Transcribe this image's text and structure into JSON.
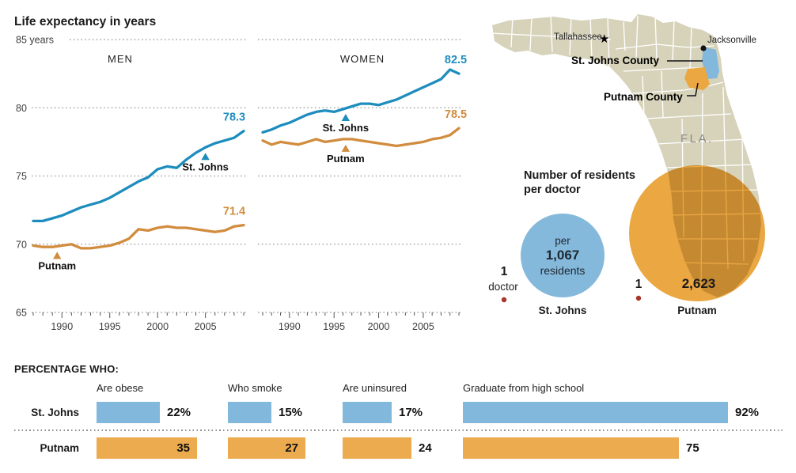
{
  "title": "Life expectancy in years",
  "colors": {
    "blue_line": "#1e8dbe",
    "orange_line": "#d18c3e",
    "blue_bar": "#82b8dc",
    "orange_bar": "#ecab4f",
    "blue_circle": "#85b9dc",
    "orange_circle": "#eaa742",
    "map_land": "#d7d3bb",
    "map_border": "#ffffff",
    "red_dot": "#ab3428",
    "grid": "#a6a6a6",
    "axis_text": "#3d3d3d",
    "fla_text": "#8b8b84"
  },
  "chart_data": [
    {
      "type": "line",
      "panel": "MEN",
      "years": [
        1987,
        1988,
        1989,
        1990,
        1991,
        1992,
        1993,
        1994,
        1995,
        1996,
        1997,
        1998,
        1999,
        2000,
        2001,
        2002,
        2003,
        2004,
        2005,
        2006,
        2007,
        2008,
        2009
      ],
      "x_ticks": [
        "1990",
        "1995",
        "2000",
        "2005"
      ],
      "ylim": [
        65,
        85
      ],
      "y_gridlines": [
        85,
        80,
        75,
        70,
        65
      ],
      "y_tick_labels": [
        "85 years",
        "80",
        "75",
        "70",
        "65"
      ],
      "grid": "dotted",
      "series": [
        {
          "name": "St. Johns",
          "color": "blue",
          "end_label": "78.3",
          "marker": {
            "year": 2005,
            "label": "St. Johns"
          },
          "values": [
            71.7,
            71.7,
            71.9,
            72.1,
            72.4,
            72.7,
            72.9,
            73.1,
            73.4,
            73.8,
            74.2,
            74.6,
            74.9,
            75.5,
            75.7,
            75.6,
            76.2,
            76.7,
            77.1,
            77.4,
            77.6,
            77.8,
            78.3
          ]
        },
        {
          "name": "Putnam",
          "color": "orange",
          "end_label": "71.4",
          "marker": {
            "year": 1989.5,
            "label": "Putnam"
          },
          "values": [
            69.9,
            69.8,
            69.8,
            69.9,
            70.0,
            69.7,
            69.7,
            69.8,
            69.9,
            70.1,
            70.4,
            71.1,
            71.0,
            71.2,
            71.3,
            71.2,
            71.2,
            71.1,
            71.0,
            70.9,
            71.0,
            71.3,
            71.4
          ]
        }
      ]
    },
    {
      "type": "line",
      "panel": "WOMEN",
      "years": [
        1987,
        1988,
        1989,
        1990,
        1991,
        1992,
        1993,
        1994,
        1995,
        1996,
        1997,
        1998,
        1999,
        2000,
        2001,
        2002,
        2003,
        2004,
        2005,
        2006,
        2007,
        2008,
        2009
      ],
      "x_ticks": [
        "1990",
        "1995",
        "2000",
        "2005"
      ],
      "ylim": [
        65,
        85
      ],
      "y_gridlines": [
        85,
        80,
        75,
        70,
        65
      ],
      "y_tick_labels": [],
      "grid": "dotted",
      "series": [
        {
          "name": "St. Johns",
          "color": "blue",
          "end_label": "82.5",
          "marker": {
            "year": 1996.3,
            "label": "St. Johns"
          },
          "values": [
            78.2,
            78.4,
            78.7,
            78.9,
            79.2,
            79.5,
            79.7,
            79.8,
            79.7,
            79.9,
            80.1,
            80.3,
            80.3,
            80.2,
            80.4,
            80.6,
            80.9,
            81.2,
            81.5,
            81.8,
            82.1,
            82.8,
            82.5
          ]
        },
        {
          "name": "Putnam",
          "color": "orange",
          "end_label": "78.5",
          "marker": {
            "year": 1996.3,
            "label": "Putnam"
          },
          "values": [
            77.6,
            77.3,
            77.5,
            77.4,
            77.3,
            77.5,
            77.7,
            77.5,
            77.6,
            77.7,
            77.7,
            77.6,
            77.5,
            77.4,
            77.3,
            77.2,
            77.3,
            77.4,
            77.5,
            77.7,
            77.8,
            78.0,
            78.5
          ]
        }
      ]
    },
    {
      "type": "bar",
      "heading": "PERCENTAGE WHO:",
      "categories": [
        "Are obese",
        "Who smoke",
        "Are uninsured",
        "Graduate from high school"
      ],
      "series": [
        {
          "name": "St. Johns",
          "color": "blue",
          "values": [
            22,
            15,
            17,
            92
          ],
          "labels": [
            "22%",
            "15%",
            "17%",
            "92%"
          ],
          "label_inside": [
            false,
            false,
            false,
            false
          ]
        },
        {
          "name": "Putnam",
          "color": "orange",
          "values": [
            35,
            27,
            24,
            75
          ],
          "labels": [
            "35",
            "27",
            "24",
            "75"
          ],
          "label_inside": [
            true,
            true,
            false,
            false
          ]
        }
      ]
    },
    {
      "type": "bubble",
      "title": "Number of residents per doctor",
      "items": [
        {
          "name": "St. Johns",
          "color": "blue",
          "value": 1067,
          "value_label": "1,067",
          "doctor_count": "1",
          "doctor_word": "doctor",
          "circle_lines": [
            "per",
            "1,067",
            "residents"
          ]
        },
        {
          "name": "Putnam",
          "color": "orange",
          "value": 2623,
          "value_label": "2,623",
          "doctor_count": "1"
        }
      ]
    }
  ],
  "map": {
    "state_label": "FLA.",
    "cities": [
      {
        "name": "Tallahassee",
        "marker": "star"
      },
      {
        "name": "Jacksonville",
        "marker": "dot"
      }
    ],
    "counties": [
      {
        "name": "St. Johns County",
        "color": "blue"
      },
      {
        "name": "Putnam County",
        "color": "orange"
      }
    ]
  }
}
